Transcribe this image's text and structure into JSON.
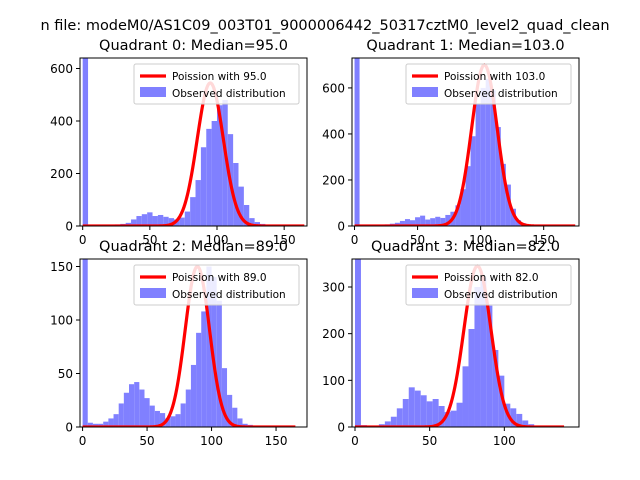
{
  "suptitle": "n file: modeM0/AS1C09_003T01_9000006442_50317cztM0_level2_quad_clean",
  "colors": {
    "poisson": "#ff0000",
    "observed": "#8080ff",
    "axis": "#000000"
  },
  "chart_data": [
    {
      "type": "bar",
      "title": "Quadrant 0: Median=95.0",
      "xlim": [
        -2,
        167
      ],
      "ylim": [
        0,
        640
      ],
      "xticks": [
        0,
        50,
        100,
        150
      ],
      "yticks": [
        0,
        200,
        400,
        600
      ],
      "bin_width": 4,
      "observed": [
        [
          0,
          640
        ],
        [
          4,
          4
        ],
        [
          8,
          3
        ],
        [
          12,
          3
        ],
        [
          16,
          4
        ],
        [
          20,
          5
        ],
        [
          24,
          6
        ],
        [
          28,
          8
        ],
        [
          32,
          12
        ],
        [
          36,
          25
        ],
        [
          40,
          38
        ],
        [
          44,
          45
        ],
        [
          48,
          52
        ],
        [
          52,
          38
        ],
        [
          56,
          42
        ],
        [
          60,
          35
        ],
        [
          64,
          30
        ],
        [
          68,
          25
        ],
        [
          72,
          32
        ],
        [
          76,
          55
        ],
        [
          80,
          110
        ],
        [
          84,
          175
        ],
        [
          88,
          300
        ],
        [
          92,
          370
        ],
        [
          96,
          400
        ],
        [
          100,
          460
        ],
        [
          104,
          480
        ],
        [
          108,
          350
        ],
        [
          112,
          240
        ],
        [
          116,
          150
        ],
        [
          120,
          80
        ],
        [
          124,
          30
        ],
        [
          128,
          15
        ],
        [
          132,
          8
        ],
        [
          136,
          4
        ],
        [
          140,
          2
        ]
      ],
      "poisson": {
        "mean": 95.0,
        "peak": 545,
        "x_range": [
          0,
          165
        ]
      },
      "legend": {
        "location": "upper-right",
        "entries": [
          "Poission with 95.0",
          "Observed distribution"
        ]
      }
    },
    {
      "type": "bar",
      "title": "Quadrant 1: Median=103.0",
      "xlim": [
        -2,
        178
      ],
      "ylim": [
        0,
        730
      ],
      "xticks": [
        0,
        50,
        100,
        150
      ],
      "yticks": [
        0,
        200,
        400,
        600
      ],
      "bin_width": 4,
      "observed": [
        [
          0,
          730
        ],
        [
          4,
          4
        ],
        [
          8,
          3
        ],
        [
          12,
          3
        ],
        [
          16,
          4
        ],
        [
          20,
          5
        ],
        [
          24,
          7
        ],
        [
          28,
          10
        ],
        [
          32,
          14
        ],
        [
          36,
          22
        ],
        [
          40,
          30
        ],
        [
          44,
          25
        ],
        [
          48,
          38
        ],
        [
          52,
          45
        ],
        [
          56,
          28
        ],
        [
          60,
          34
        ],
        [
          64,
          40
        ],
        [
          68,
          35
        ],
        [
          72,
          48
        ],
        [
          76,
          62
        ],
        [
          80,
          90
        ],
        [
          84,
          160
        ],
        [
          88,
          260
        ],
        [
          92,
          390
        ],
        [
          96,
          530
        ],
        [
          100,
          600
        ],
        [
          104,
          640
        ],
        [
          108,
          590
        ],
        [
          112,
          430
        ],
        [
          116,
          270
        ],
        [
          120,
          180
        ],
        [
          124,
          75
        ],
        [
          128,
          25
        ],
        [
          132,
          12
        ],
        [
          136,
          5
        ],
        [
          140,
          2
        ]
      ],
      "poisson": {
        "mean": 103.0,
        "peak": 700,
        "x_range": [
          0,
          175
        ]
      },
      "legend": {
        "location": "upper-right",
        "entries": [
          "Poission with 103.0",
          "Observed distribution"
        ]
      }
    },
    {
      "type": "bar",
      "title": "Quadrant 2: Median=89.0",
      "xlim": [
        -2,
        174
      ],
      "ylim": [
        0,
        157
      ],
      "xticks": [
        0,
        50,
        100,
        150
      ],
      "yticks": [
        0,
        50,
        100,
        150
      ],
      "bin_width": 4,
      "observed": [
        [
          0,
          157
        ],
        [
          4,
          4
        ],
        [
          8,
          3
        ],
        [
          12,
          3
        ],
        [
          16,
          5
        ],
        [
          20,
          8
        ],
        [
          24,
          12
        ],
        [
          28,
          22
        ],
        [
          32,
          32
        ],
        [
          36,
          40
        ],
        [
          40,
          42
        ],
        [
          44,
          35
        ],
        [
          48,
          27
        ],
        [
          52,
          20
        ],
        [
          56,
          15
        ],
        [
          60,
          13
        ],
        [
          64,
          8
        ],
        [
          68,
          10
        ],
        [
          72,
          12
        ],
        [
          76,
          22
        ],
        [
          80,
          35
        ],
        [
          84,
          58
        ],
        [
          88,
          88
        ],
        [
          92,
          108
        ],
        [
          96,
          150
        ],
        [
          100,
          140
        ],
        [
          104,
          118
        ],
        [
          108,
          55
        ],
        [
          112,
          30
        ],
        [
          116,
          18
        ],
        [
          120,
          8
        ],
        [
          124,
          3
        ],
        [
          128,
          2
        ]
      ],
      "poisson": {
        "mean": 89.0,
        "peak": 150,
        "x_range": [
          0,
          165
        ]
      },
      "legend": {
        "location": "upper-right",
        "entries": [
          "Poission with 89.0",
          "Observed distribution"
        ]
      }
    },
    {
      "type": "bar",
      "title": "Quadrant 3: Median=82.0",
      "xlim": [
        -2,
        150
      ],
      "ylim": [
        0,
        360
      ],
      "xticks": [
        0,
        50,
        100
      ],
      "yticks": [
        0,
        100,
        200,
        300
      ],
      "bin_width": 4,
      "observed": [
        [
          0,
          360
        ],
        [
          4,
          4
        ],
        [
          8,
          3
        ],
        [
          12,
          3
        ],
        [
          16,
          6
        ],
        [
          20,
          12
        ],
        [
          24,
          22
        ],
        [
          28,
          40
        ],
        [
          32,
          60
        ],
        [
          36,
          85
        ],
        [
          40,
          78
        ],
        [
          44,
          68
        ],
        [
          48,
          55
        ],
        [
          52,
          60
        ],
        [
          56,
          45
        ],
        [
          60,
          32
        ],
        [
          64,
          35
        ],
        [
          68,
          52
        ],
        [
          72,
          130
        ],
        [
          76,
          210
        ],
        [
          80,
          300
        ],
        [
          84,
          320
        ],
        [
          88,
          260
        ],
        [
          92,
          165
        ],
        [
          96,
          110
        ],
        [
          100,
          50
        ],
        [
          104,
          40
        ],
        [
          108,
          28
        ],
        [
          112,
          14
        ],
        [
          116,
          6
        ],
        [
          120,
          3
        ]
      ],
      "poisson": {
        "mean": 82.0,
        "peak": 345,
        "x_range": [
          0,
          140
        ]
      },
      "legend": {
        "location": "upper-right",
        "entries": [
          "Poission with 82.0",
          "Observed distribution"
        ]
      }
    }
  ]
}
